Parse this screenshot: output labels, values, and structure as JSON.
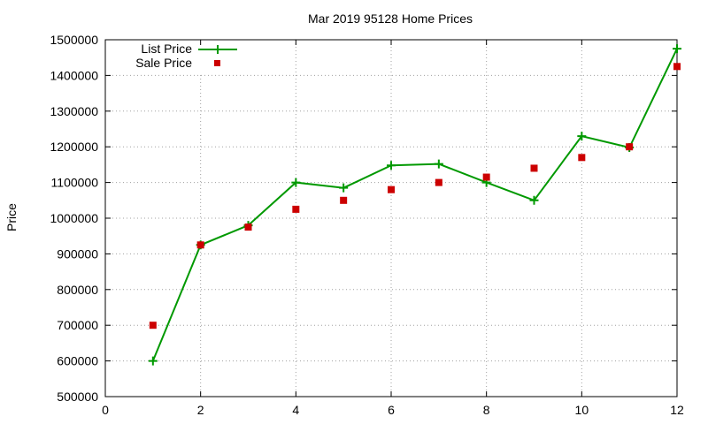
{
  "chart_data": {
    "type": "line",
    "title": "Mar 2019 95128 Home Prices",
    "xlabel": "",
    "ylabel": "Price",
    "xlim": [
      0,
      12
    ],
    "ylim": [
      500000,
      1500000
    ],
    "xticks": [
      0,
      2,
      4,
      6,
      8,
      10,
      12
    ],
    "yticks": [
      500000,
      600000,
      700000,
      800000,
      900000,
      1000000,
      1100000,
      1200000,
      1300000,
      1400000,
      1500000
    ],
    "grid": true,
    "legend_position": "top-left",
    "series": [
      {
        "name": "List Price",
        "style": "line-with-plus-markers",
        "color": "#009900",
        "x": [
          1,
          2,
          3,
          4,
          5,
          6,
          7,
          8,
          9,
          10,
          11,
          12
        ],
        "values": [
          600000,
          925000,
          980000,
          1100000,
          1085000,
          1148000,
          1152000,
          1100000,
          1050000,
          1230000,
          1198000,
          1475000
        ]
      },
      {
        "name": "Sale Price",
        "style": "square-markers",
        "color": "#cc0000",
        "x": [
          1,
          2,
          3,
          4,
          5,
          6,
          7,
          8,
          9,
          10,
          11,
          12
        ],
        "values": [
          700000,
          925000,
          975000,
          1025000,
          1050000,
          1080000,
          1100000,
          1115000,
          1140000,
          1170000,
          1200000,
          1425000
        ]
      }
    ]
  }
}
